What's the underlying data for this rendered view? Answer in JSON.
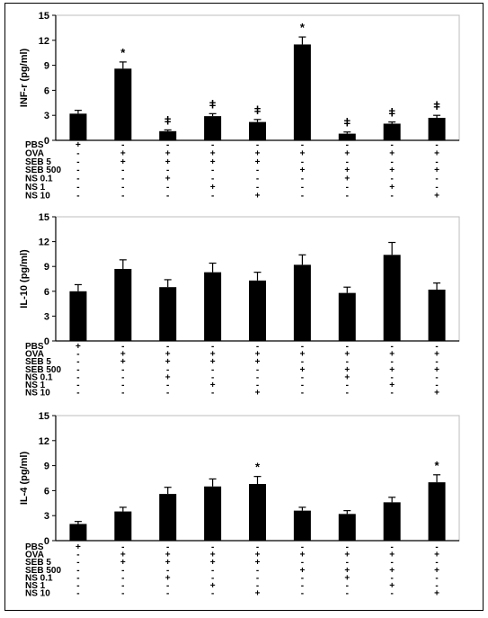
{
  "chart_data": [
    {
      "type": "bar",
      "ylabel": "INF-r (pg/ml)",
      "ylim": [
        0,
        15
      ],
      "yticks": [
        "0",
        "3",
        "6",
        "9",
        "12",
        "15"
      ],
      "values": [
        3.2,
        8.6,
        1.1,
        2.9,
        2.2,
        11.5,
        0.8,
        2.0,
        2.7
      ],
      "errors": [
        0.4,
        0.8,
        0.15,
        0.3,
        0.3,
        0.9,
        0.2,
        0.2,
        0.3
      ],
      "annotations": [
        "",
        "*",
        "ǂ",
        "ǂ",
        "ǂ",
        "*",
        "ǂ",
        "ǂ",
        "ǂ"
      ],
      "conditions": [
        {
          "label": "PBS",
          "signs": [
            "+",
            "-",
            "-",
            "-",
            "-",
            "-",
            "-",
            "-",
            "-"
          ]
        },
        {
          "label": "OVA",
          "signs": [
            "-",
            "+",
            "+",
            "+",
            "+",
            "+",
            "+",
            "+",
            "+"
          ]
        },
        {
          "label": "SEB 5",
          "signs": [
            "-",
            "+",
            "+",
            "+",
            "+",
            "-",
            "-",
            "-",
            "-"
          ]
        },
        {
          "label": "SEB 500",
          "signs": [
            "-",
            "-",
            "-",
            "-",
            "-",
            "+",
            "+",
            "+",
            "+"
          ]
        },
        {
          "label": "NS 0.1",
          "signs": [
            "-",
            "-",
            "+",
            "-",
            "-",
            "-",
            "+",
            "-",
            "-"
          ]
        },
        {
          "label": "NS 1",
          "signs": [
            "-",
            "-",
            "-",
            "+",
            "-",
            "-",
            "-",
            "+",
            "-"
          ]
        },
        {
          "label": "NS 10",
          "signs": [
            "-",
            "-",
            "-",
            "-",
            "+",
            "-",
            "-",
            "-",
            "+"
          ]
        }
      ]
    },
    {
      "type": "bar",
      "ylabel": "IL-10 (pg/ml)",
      "ylim": [
        0,
        15
      ],
      "yticks": [
        "0",
        "3",
        "6",
        "9",
        "12",
        "15"
      ],
      "values": [
        6.0,
        8.7,
        6.5,
        8.3,
        7.3,
        9.2,
        5.8,
        10.4,
        6.2
      ],
      "errors": [
        0.8,
        1.1,
        0.9,
        1.1,
        1.0,
        1.2,
        0.7,
        1.5,
        0.8
      ],
      "annotations": [
        "",
        "",
        "",
        "",
        "",
        "",
        "",
        "",
        ""
      ],
      "conditions": [
        {
          "label": "PBS",
          "signs": [
            "+",
            "-",
            "-",
            "-",
            "-",
            "-",
            "-",
            "-",
            "-"
          ]
        },
        {
          "label": "OVA",
          "signs": [
            "-",
            "+",
            "+",
            "+",
            "+",
            "+",
            "+",
            "+",
            "+"
          ]
        },
        {
          "label": "SEB 5",
          "signs": [
            "-",
            "+",
            "+",
            "+",
            "+",
            "-",
            "-",
            "-",
            "-"
          ]
        },
        {
          "label": "SEB 500",
          "signs": [
            "-",
            "-",
            "-",
            "-",
            "-",
            "+",
            "+",
            "+",
            "+"
          ]
        },
        {
          "label": "NS 0.1",
          "signs": [
            "-",
            "-",
            "+",
            "-",
            "-",
            "-",
            "+",
            "-",
            "-"
          ]
        },
        {
          "label": "NS 1",
          "signs": [
            "-",
            "-",
            "-",
            "+",
            "-",
            "-",
            "-",
            "+",
            "-"
          ]
        },
        {
          "label": "NS 10",
          "signs": [
            "-",
            "-",
            "-",
            "-",
            "+",
            "-",
            "-",
            "-",
            "+"
          ]
        }
      ]
    },
    {
      "type": "bar",
      "ylabel": "IL-4 (pg/ml)",
      "ylim": [
        0,
        15
      ],
      "yticks": [
        "0",
        "3",
        "6",
        "9",
        "12",
        "15"
      ],
      "values": [
        2.0,
        3.5,
        5.6,
        6.5,
        6.8,
        3.6,
        3.2,
        4.6,
        7.0
      ],
      "errors": [
        0.3,
        0.5,
        0.8,
        0.9,
        0.9,
        0.4,
        0.4,
        0.6,
        0.9
      ],
      "annotations": [
        "",
        "",
        "",
        "",
        "*",
        "",
        "",
        "",
        "*"
      ],
      "conditions": [
        {
          "label": "PBS",
          "signs": [
            "+",
            "-",
            "-",
            "-",
            "-",
            "-",
            "-",
            "-",
            "-"
          ]
        },
        {
          "label": "OVA",
          "signs": [
            "-",
            "+",
            "+",
            "+",
            "+",
            "+",
            "+",
            "+",
            "+"
          ]
        },
        {
          "label": "SEB 5",
          "signs": [
            "-",
            "+",
            "+",
            "+",
            "+",
            "-",
            "-",
            "-",
            "-"
          ]
        },
        {
          "label": "SEB 500",
          "signs": [
            "-",
            "-",
            "-",
            "-",
            "-",
            "+",
            "+",
            "+",
            "+"
          ]
        },
        {
          "label": "NS 0.1",
          "signs": [
            "-",
            "-",
            "+",
            "-",
            "-",
            "-",
            "+",
            "-",
            "-"
          ]
        },
        {
          "label": "NS 1",
          "signs": [
            "-",
            "-",
            "-",
            "+",
            "-",
            "-",
            "-",
            "+",
            "-"
          ]
        },
        {
          "label": "NS 10",
          "signs": [
            "-",
            "-",
            "-",
            "-",
            "+",
            "-",
            "-",
            "-",
            "+"
          ]
        }
      ]
    }
  ]
}
